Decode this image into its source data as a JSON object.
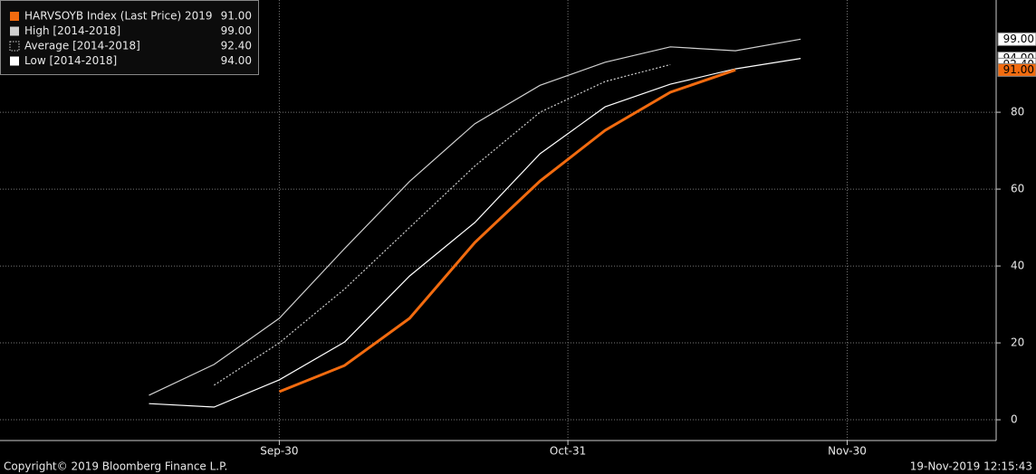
{
  "chart_data": {
    "type": "line",
    "x": [
      "Sep-16",
      "Sep-23",
      "Sep-30",
      "Oct-07",
      "Oct-14",
      "Oct-21",
      "Oct-28",
      "Nov-04",
      "Nov-11",
      "Nov-18",
      "Nov-25"
    ],
    "xlim": [
      "Aug-31",
      "Dec-16"
    ],
    "xticks": [
      "Sep-30",
      "Oct-31",
      "Nov-30"
    ],
    "ylim": [
      -5.4,
      109.2
    ],
    "yticks": [
      0,
      20,
      40,
      60,
      80
    ],
    "grid": true,
    "legend": "top-left",
    "series": [
      {
        "name": "HARVSOYB Index (Last Price) 2019",
        "legend_value": "91.00",
        "color": "#f26b0f",
        "line_style": "solid",
        "width": 3,
        "values": [
          null,
          null,
          7.3,
          14.1,
          26.4,
          46.1,
          62.1,
          75.3,
          85.2,
          91,
          null
        ]
      },
      {
        "name": "High [2014-2018]",
        "legend_value": "99.00",
        "color": "#d0d0d0",
        "line_style": "solid",
        "width": 1.2,
        "values": [
          6.4,
          14.4,
          26.4,
          44.5,
          62,
          77,
          87,
          93,
          97,
          96,
          99
        ]
      },
      {
        "name": "Average [2014-2018]",
        "legend_value": "92.40",
        "color": "#d0d0d0",
        "line_style": "dotted",
        "width": 1.2,
        "values": [
          null,
          9,
          20,
          34,
          50,
          66,
          80,
          88,
          92.4,
          null,
          null
        ]
      },
      {
        "name": "Low [2014-2018]",
        "legend_value": "94.00",
        "color": "#ffffff",
        "line_style": "solid",
        "width": 1.2,
        "values": [
          4.2,
          3.3,
          10.4,
          20.2,
          37.4,
          51.3,
          69.2,
          81.4,
          87.3,
          91.3,
          94
        ]
      }
    ],
    "footer_left": "Copyright© 2019 Bloomberg Finance L.P.",
    "footer_right": "19-Nov-2019 12:15:43"
  }
}
